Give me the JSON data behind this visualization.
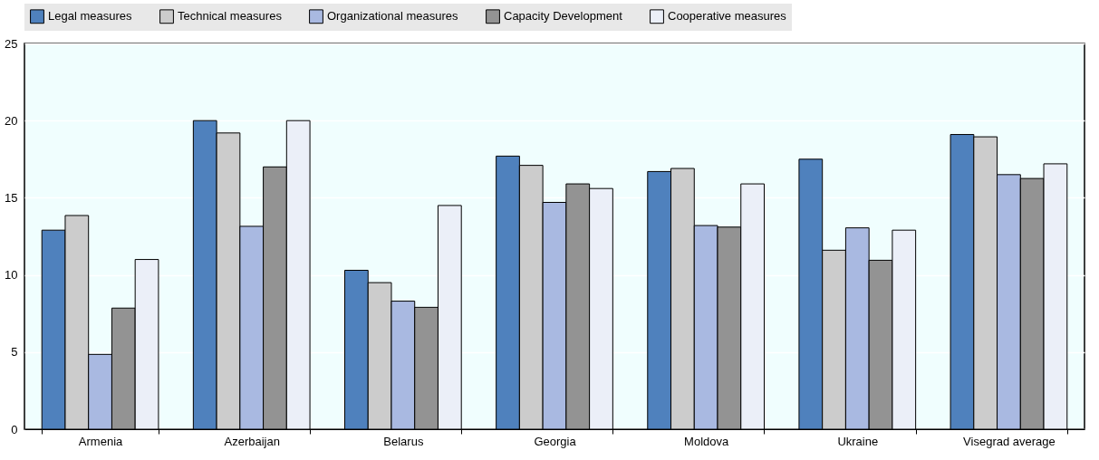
{
  "chart_data": {
    "type": "bar",
    "categories": [
      "Armenia",
      "Azerbaijan",
      "Belarus",
      "Georgia",
      "Moldova",
      "Ukraine",
      "Visegrad average"
    ],
    "series": [
      {
        "name": "Legal measures",
        "color": "#4f81bd",
        "values": [
          12.9,
          20,
          10.3,
          17.7,
          16.7,
          17.5,
          19.1
        ]
      },
      {
        "name": "Technical measures",
        "color": "#cccccc",
        "values": [
          13.85,
          19.2,
          9.5,
          17.1,
          16.9,
          11.6,
          18.95
        ]
      },
      {
        "name": "Organizational measures",
        "color": "#a9b9e1",
        "values": [
          4.85,
          13.15,
          8.3,
          14.7,
          13.2,
          13.05,
          16.5
        ]
      },
      {
        "name": "Capacity Development",
        "color": "#939393",
        "values": [
          7.85,
          17,
          7.9,
          15.9,
          13.1,
          10.95,
          16.25
        ]
      },
      {
        "name": "Cooperative measures",
        "color": "#ebeff8",
        "values": [
          11,
          20,
          14.5,
          15.6,
          15.9,
          12.9,
          17.2
        ]
      }
    ],
    "ylim": [
      0,
      25
    ],
    "yticks": [
      0,
      5,
      10,
      15,
      20,
      25
    ],
    "grid": "y",
    "legend": "top"
  }
}
